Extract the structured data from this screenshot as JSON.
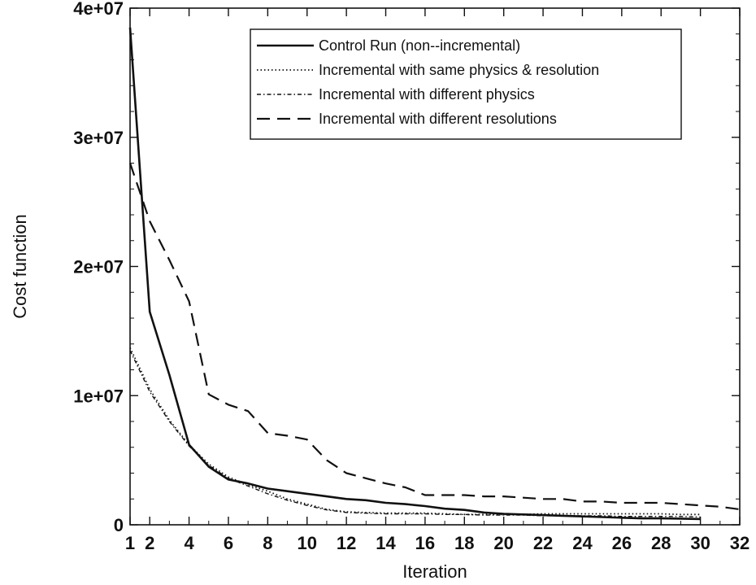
{
  "chart_data": {
    "type": "line",
    "title": "",
    "xlabel": "Iteration",
    "ylabel": "Cost function",
    "xlim": [
      1,
      32
    ],
    "ylim": [
      0,
      40000000
    ],
    "x_ticks": [
      {
        "value": 1,
        "label": "1"
      },
      {
        "value": 2,
        "label": "2"
      },
      {
        "value": 4,
        "label": "4"
      },
      {
        "value": 6,
        "label": "6"
      },
      {
        "value": 8,
        "label": "8"
      },
      {
        "value": 10,
        "label": "10"
      },
      {
        "value": 12,
        "label": "12"
      },
      {
        "value": 14,
        "label": "14"
      },
      {
        "value": 16,
        "label": "16"
      },
      {
        "value": 18,
        "label": "18"
      },
      {
        "value": 20,
        "label": "20"
      },
      {
        "value": 22,
        "label": "22"
      },
      {
        "value": 24,
        "label": "24"
      },
      {
        "value": 26,
        "label": "26"
      },
      {
        "value": 28,
        "label": "28"
      },
      {
        "value": 30,
        "label": "30"
      },
      {
        "value": 32,
        "label": "32"
      }
    ],
    "y_ticks": [
      {
        "value": 0,
        "label": "0"
      },
      {
        "value": 10000000,
        "label": "1e+07"
      },
      {
        "value": 20000000,
        "label": "2e+07"
      },
      {
        "value": 30000000,
        "label": "3e+07"
      },
      {
        "value": 40000000,
        "label": "4e+07"
      }
    ],
    "grid": false,
    "legend_position": "top-right",
    "series": [
      {
        "name": "Control Run (non--incremental)",
        "style": "solid",
        "x": [
          1,
          2,
          3,
          4,
          5,
          6,
          7,
          8,
          9,
          10,
          11,
          12,
          13,
          14,
          15,
          16,
          17,
          18,
          19,
          20,
          21,
          22,
          23,
          24,
          25,
          26,
          27,
          28,
          29,
          30
        ],
        "y": [
          38500000,
          16500000,
          11600000,
          6200000,
          4500000,
          3500000,
          3200000,
          2800000,
          2600000,
          2400000,
          2200000,
          2000000,
          1900000,
          1700000,
          1600000,
          1450000,
          1250000,
          1150000,
          950000,
          850000,
          800000,
          750000,
          700000,
          650000,
          600000,
          550000,
          500000,
          500000,
          480000,
          450000
        ]
      },
      {
        "name": "Incremental with same physics & resolution",
        "style": "dotted",
        "x": [
          1,
          2,
          3,
          4,
          5,
          6,
          7,
          8,
          9,
          10,
          11,
          12,
          13,
          14,
          15,
          16,
          17,
          18,
          19,
          20,
          21,
          22,
          23,
          24,
          25,
          26,
          27,
          28,
          29,
          30
        ],
        "y": [
          13700000,
          10500000,
          8100000,
          6200000,
          4700000,
          3700000,
          3100000,
          2600000,
          2000000,
          1600000,
          1200000,
          1000000,
          950000,
          900000,
          900000,
          900000,
          850000,
          800000,
          800000,
          800000,
          800000,
          850000,
          850000,
          850000,
          850000,
          850000,
          850000,
          850000,
          800000,
          800000
        ]
      },
      {
        "name": "Incremental with different physics",
        "style": "dash-dot",
        "x": [
          1,
          2,
          3,
          4,
          5,
          6,
          7,
          8,
          9,
          10,
          11,
          12,
          13,
          14,
          15,
          16,
          17,
          18,
          19,
          20,
          21,
          22,
          23,
          24,
          25,
          26,
          27,
          28,
          29,
          30
        ],
        "y": [
          13500000,
          10300000,
          8000000,
          6100000,
          4600000,
          3600000,
          3000000,
          2400000,
          1900000,
          1500000,
          1150000,
          950000,
          900000,
          850000,
          850000,
          850000,
          800000,
          800000,
          750000,
          750000,
          750000,
          700000,
          700000,
          700000,
          700000,
          650000,
          650000,
          650000,
          650000,
          600000
        ]
      },
      {
        "name": "Incremental with different resolutions",
        "style": "dashed",
        "x": [
          1,
          2,
          3,
          4,
          5,
          6,
          7,
          8,
          9,
          10,
          11,
          12,
          13,
          14,
          15,
          16,
          17,
          18,
          19,
          20,
          21,
          22,
          23,
          24,
          25,
          26,
          27,
          28,
          29,
          30,
          31,
          32
        ],
        "y": [
          28000000,
          23500000,
          20500000,
          17300000,
          10100000,
          9300000,
          8800000,
          7100000,
          6900000,
          6600000,
          5000000,
          4000000,
          3600000,
          3200000,
          2900000,
          2300000,
          2300000,
          2300000,
          2200000,
          2200000,
          2100000,
          2000000,
          2000000,
          1800000,
          1800000,
          1700000,
          1700000,
          1700000,
          1600000,
          1500000,
          1400000,
          1200000
        ]
      }
    ]
  }
}
